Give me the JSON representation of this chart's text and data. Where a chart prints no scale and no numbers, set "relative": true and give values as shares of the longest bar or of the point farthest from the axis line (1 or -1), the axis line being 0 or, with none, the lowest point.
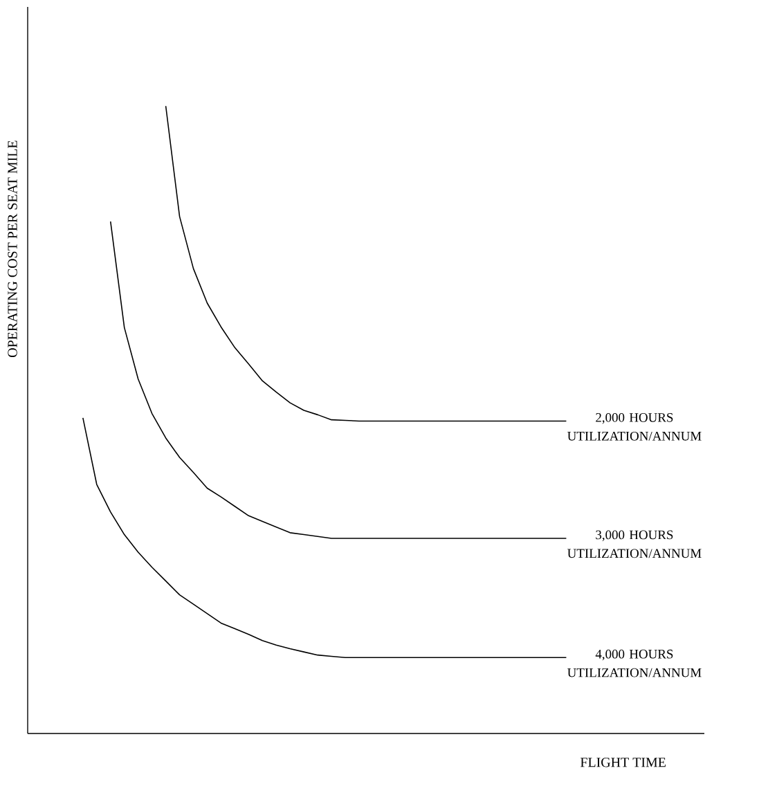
{
  "chart_data": {
    "type": "line",
    "relative": true,
    "xlabel": "FLIGHT TIME",
    "ylabel": "OPERATING COST PER SEAT MILE",
    "legend": false,
    "marker": "none",
    "line_style": "solid",
    "tick_labels": false,
    "categories": [
      null,
      null,
      null,
      null,
      null,
      null,
      null,
      null,
      null,
      null,
      null,
      null,
      null,
      null,
      null,
      null,
      null,
      null,
      null,
      null,
      null,
      null,
      null,
      null,
      null,
      null,
      null,
      null,
      null,
      null,
      null,
      null,
      null,
      null,
      null,
      null,
      null,
      null,
      null,
      null,
      null,
      null,
      null,
      null,
      null,
      null,
      null,
      null,
      null,
      null
    ],
    "series": [
      {
        "name": "2,000 HOURS UTILIZATION/ANNUM",
        "color": "#000000",
        "values": [
          null,
          null,
          null,
          null,
          null,
          null,
          null,
          null,
          null,
          null,
          1.0,
          0.824,
          0.741,
          0.686,
          0.648,
          0.615,
          0.589,
          0.562,
          0.544,
          0.527,
          0.515,
          0.508,
          0.5,
          0.499,
          0.498,
          0.498,
          0.498,
          0.498,
          0.498,
          0.498,
          0.498,
          0.498,
          0.498,
          0.498,
          0.498,
          0.498,
          0.498,
          0.498,
          0.498,
          0.498,
          null,
          null,
          null,
          null,
          null,
          null,
          null,
          null,
          null,
          null
        ]
      },
      {
        "name": "3,000 HOURS UTILIZATION/ANNUM",
        "color": "#000000",
        "values": [
          null,
          null,
          null,
          null,
          null,
          null,
          0.816,
          0.647,
          0.565,
          0.51,
          0.471,
          0.44,
          0.416,
          0.391,
          0.377,
          0.362,
          0.347,
          0.338,
          0.329,
          0.32,
          0.317,
          0.314,
          0.311,
          0.311,
          0.311,
          0.311,
          0.311,
          0.311,
          0.311,
          0.311,
          0.311,
          0.311,
          0.311,
          0.311,
          0.311,
          0.311,
          0.311,
          0.311,
          0.311,
          0.311,
          null,
          null,
          null,
          null,
          null,
          null,
          null,
          null,
          null,
          null
        ]
      },
      {
        "name": "4,000 HOURS UTILIZATION/ANNUM",
        "color": "#000000",
        "values": [
          null,
          null,
          null,
          null,
          0.503,
          0.397,
          0.353,
          0.317,
          0.289,
          0.265,
          0.243,
          0.221,
          0.206,
          0.191,
          0.176,
          0.167,
          0.158,
          0.148,
          0.141,
          0.135,
          0.13,
          0.125,
          0.123,
          0.121,
          0.121,
          0.121,
          0.121,
          0.121,
          0.121,
          0.121,
          0.121,
          0.121,
          0.121,
          0.121,
          0.121,
          0.121,
          0.121,
          0.121,
          0.121,
          0.121,
          null,
          null,
          null,
          null,
          null,
          null,
          null,
          null,
          null,
          null
        ]
      }
    ]
  }
}
